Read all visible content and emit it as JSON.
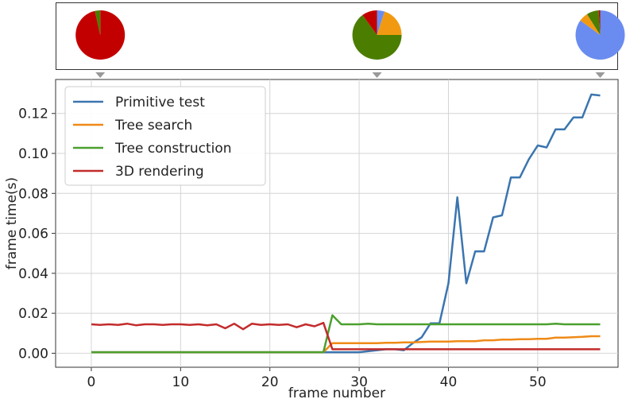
{
  "chart_data": {
    "type": "line",
    "xlabel": "frame number",
    "ylabel": "frame time(s)",
    "xlim": [
      -4,
      59
    ],
    "ylim": [
      -0.007,
      0.137
    ],
    "xticks": [
      0,
      10,
      20,
      30,
      40,
      50
    ],
    "yticks": [
      0.0,
      0.02,
      0.04,
      0.06,
      0.08,
      0.1,
      0.12
    ],
    "ytick_labels": [
      "0.00",
      "0.02",
      "0.04",
      "0.06",
      "0.08",
      "0.10",
      "0.12"
    ],
    "grid": true,
    "legend_position": "upper-left",
    "x": [
      0,
      1,
      2,
      3,
      4,
      5,
      6,
      7,
      8,
      9,
      10,
      11,
      12,
      13,
      14,
      15,
      16,
      17,
      18,
      19,
      20,
      21,
      22,
      23,
      24,
      25,
      26,
      27,
      28,
      29,
      30,
      31,
      32,
      33,
      34,
      35,
      36,
      37,
      38,
      39,
      40,
      41,
      42,
      43,
      44,
      45,
      46,
      47,
      48,
      49,
      50,
      51,
      52,
      53,
      54,
      55,
      56,
      57
    ],
    "series": [
      {
        "name": "Primitive test",
        "color": "#3b75af",
        "values": [
          0.0005,
          0.0005,
          0.0005,
          0.0005,
          0.0005,
          0.0005,
          0.0005,
          0.0005,
          0.0005,
          0.0005,
          0.0005,
          0.0005,
          0.0005,
          0.0005,
          0.0005,
          0.0005,
          0.0005,
          0.0005,
          0.0005,
          0.0005,
          0.0005,
          0.0005,
          0.0005,
          0.0005,
          0.0005,
          0.0005,
          0.0005,
          0.0005,
          0.0005,
          0.0005,
          0.0005,
          0.001,
          0.0015,
          0.002,
          0.002,
          0.0015,
          0.005,
          0.008,
          0.015,
          0.015,
          0.035,
          0.078,
          0.035,
          0.051,
          0.051,
          0.068,
          0.069,
          0.088,
          0.088,
          0.097,
          0.104,
          0.103,
          0.112,
          0.112,
          0.118,
          0.118,
          0.1295,
          0.129
        ]
      },
      {
        "name": "Tree search",
        "color": "#ef8a17",
        "values": [
          0.0005,
          0.0005,
          0.0005,
          0.0005,
          0.0005,
          0.0005,
          0.0005,
          0.0005,
          0.0005,
          0.0005,
          0.0005,
          0.0005,
          0.0005,
          0.0005,
          0.0005,
          0.0005,
          0.0005,
          0.0005,
          0.0005,
          0.0005,
          0.0005,
          0.0005,
          0.0005,
          0.0005,
          0.0005,
          0.0005,
          0.0005,
          0.005,
          0.005,
          0.005,
          0.005,
          0.005,
          0.005,
          0.0052,
          0.0052,
          0.0054,
          0.0054,
          0.0056,
          0.0058,
          0.0058,
          0.0058,
          0.006,
          0.006,
          0.006,
          0.0065,
          0.0065,
          0.0068,
          0.0068,
          0.007,
          0.007,
          0.0072,
          0.0072,
          0.0078,
          0.0078,
          0.008,
          0.0082,
          0.0085,
          0.0085
        ]
      },
      {
        "name": "Tree construction",
        "color": "#4ba02f",
        "values": [
          0.0005,
          0.0005,
          0.0005,
          0.0005,
          0.0005,
          0.0005,
          0.0005,
          0.0005,
          0.0005,
          0.0005,
          0.0005,
          0.0005,
          0.0005,
          0.0005,
          0.0005,
          0.0005,
          0.0005,
          0.0005,
          0.0005,
          0.0005,
          0.0005,
          0.0005,
          0.0005,
          0.0005,
          0.0005,
          0.0005,
          0.0005,
          0.019,
          0.0145,
          0.0145,
          0.0145,
          0.0148,
          0.0145,
          0.0145,
          0.0145,
          0.0145,
          0.0145,
          0.0145,
          0.0145,
          0.0145,
          0.0145,
          0.0145,
          0.0145,
          0.0145,
          0.0145,
          0.0145,
          0.0145,
          0.0145,
          0.0145,
          0.0145,
          0.0145,
          0.0145,
          0.0148,
          0.0145,
          0.0145,
          0.0145,
          0.0145,
          0.0145
        ]
      },
      {
        "name": "3D rendering",
        "color": "#c32b2b",
        "values": [
          0.0145,
          0.0142,
          0.0145,
          0.0142,
          0.0148,
          0.014,
          0.0145,
          0.0145,
          0.0142,
          0.0145,
          0.0145,
          0.0142,
          0.0145,
          0.014,
          0.0145,
          0.0125,
          0.0148,
          0.012,
          0.0148,
          0.0142,
          0.0145,
          0.0142,
          0.0145,
          0.013,
          0.0145,
          0.0135,
          0.0152,
          0.002,
          0.002,
          0.002,
          0.002,
          0.002,
          0.002,
          0.002,
          0.002,
          0.002,
          0.002,
          0.002,
          0.002,
          0.002,
          0.002,
          0.002,
          0.002,
          0.002,
          0.002,
          0.002,
          0.002,
          0.002,
          0.002,
          0.002,
          0.002,
          0.002,
          0.002,
          0.002,
          0.002,
          0.002,
          0.002,
          0.002
        ]
      }
    ],
    "pies": [
      {
        "frame": 1,
        "slices": [
          {
            "label": "3D rendering",
            "value": 0.965,
            "color": "#c30000"
          },
          {
            "label": "Tree construction",
            "value": 0.035,
            "color": "#4b7d00"
          }
        ]
      },
      {
        "frame": 32,
        "slices": [
          {
            "label": "Primitive test",
            "value": 0.05,
            "color": "#6a8cf0"
          },
          {
            "label": "Tree search",
            "value": 0.2,
            "color": "#f19a11"
          },
          {
            "label": "Tree construction",
            "value": 0.65,
            "color": "#4b7d00"
          },
          {
            "label": "3D rendering",
            "value": 0.1,
            "color": "#c30000"
          }
        ]
      },
      {
        "frame": 57,
        "slices": [
          {
            "label": "Primitive test",
            "value": 0.85,
            "color": "#6a8cf0"
          },
          {
            "label": "Tree search",
            "value": 0.06,
            "color": "#f19a11"
          },
          {
            "label": "Tree construction",
            "value": 0.08,
            "color": "#4b7d00"
          },
          {
            "label": "3D rendering",
            "value": 0.01,
            "color": "#c30000"
          }
        ]
      }
    ]
  }
}
